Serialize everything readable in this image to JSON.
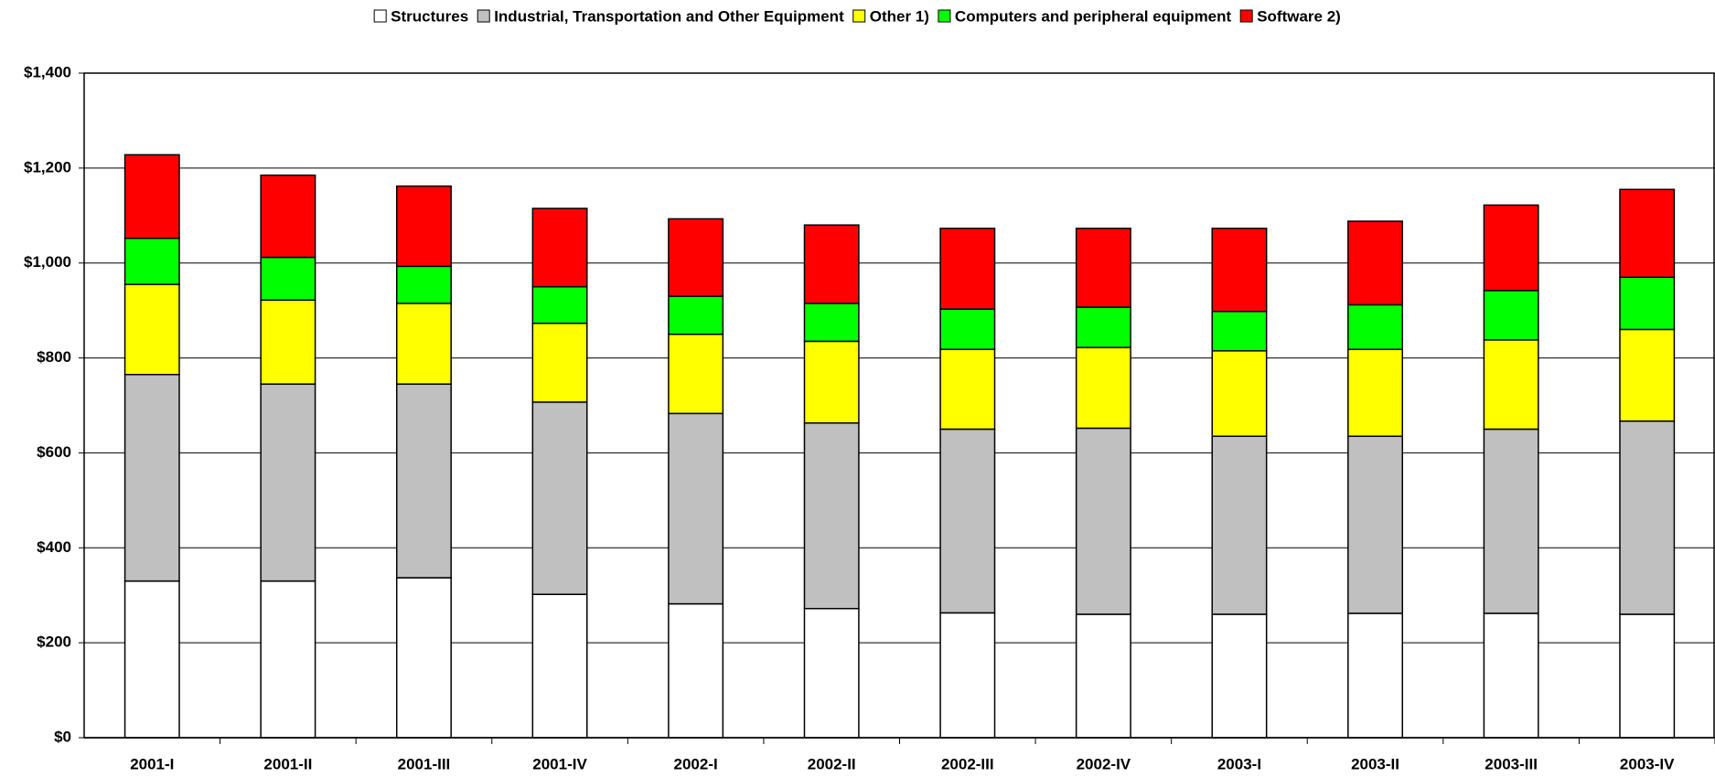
{
  "chart_data": {
    "type": "stacked_bar",
    "categories": [
      "2001-I",
      "2001-II",
      "2001-III",
      "2001-IV",
      "2002-I",
      "2002-II",
      "2002-III",
      "2002-IV",
      "2003-I",
      "2003-II",
      "2003-III",
      "2003-IV"
    ],
    "series": [
      {
        "name": "Structures",
        "color": "#ffffff",
        "values": [
          330,
          330,
          337,
          302,
          282,
          272,
          263,
          260,
          260,
          262,
          262,
          260
        ]
      },
      {
        "name": "Industrial, Transportation and Other Equipment",
        "color": "#c0c0c0",
        "values": [
          435,
          415,
          408,
          405,
          401,
          391,
          387,
          392,
          375,
          373,
          388,
          407
        ]
      },
      {
        "name": "Other 1)",
        "color": "#ffff00",
        "values": [
          190,
          177,
          170,
          166,
          167,
          172,
          168,
          170,
          180,
          183,
          188,
          193
        ]
      },
      {
        "name": "Computers and peripheral equipment",
        "color": "#00ff00",
        "values": [
          97,
          90,
          78,
          77,
          80,
          80,
          85,
          85,
          83,
          94,
          104,
          110
        ]
      },
      {
        "name": "Software 2)",
        "color": "#ff0000",
        "values": [
          176,
          173,
          169,
          165,
          163,
          165,
          170,
          166,
          175,
          176,
          180,
          185
        ]
      }
    ],
    "ylim": [
      0,
      1400
    ],
    "yticks": [
      {
        "value": 0,
        "label": "$0"
      },
      {
        "value": 200,
        "label": "$200"
      },
      {
        "value": 400,
        "label": "$400"
      },
      {
        "value": 600,
        "label": "$600"
      },
      {
        "value": 800,
        "label": "$800"
      },
      {
        "value": 1000,
        "label": "$1,000"
      },
      {
        "value": 1200,
        "label": "$1,200"
      },
      {
        "value": 1400,
        "label": "$1,400"
      }
    ],
    "grid": true,
    "legend": "top"
  }
}
